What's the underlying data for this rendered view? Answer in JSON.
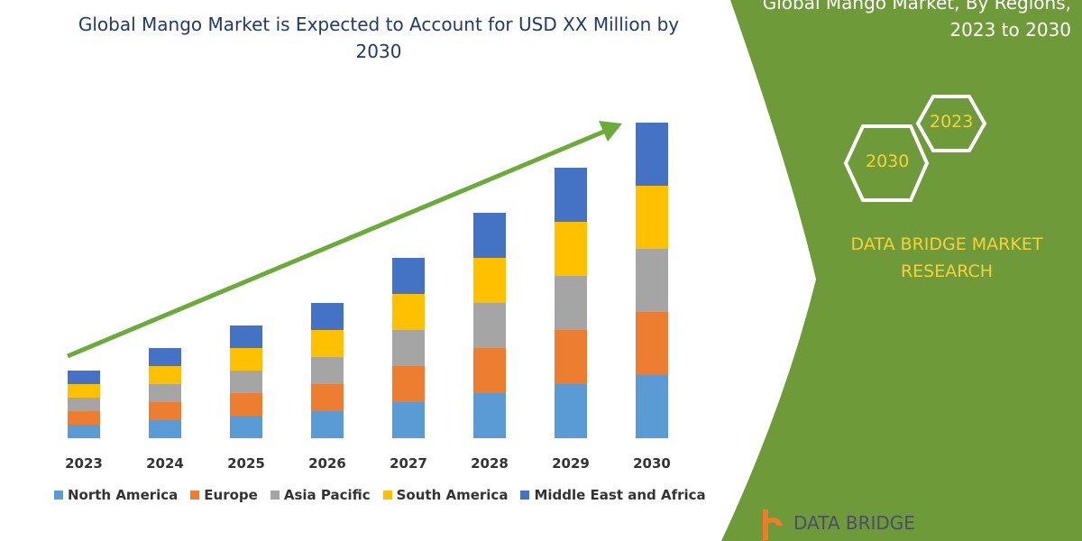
{
  "header": {
    "title": "Global Mango Market is Expected to Account for USD XX Million by 2030"
  },
  "side_panel": {
    "title_line1": "Global Mango Market, By Regions,",
    "title_line2": "2023 to 2030",
    "hex_years": [
      "2023",
      "2030"
    ],
    "brand_line1": "DATA BRIDGE MARKET",
    "brand_line2": "RESEARCH",
    "footer_logo": "DATA BRIDGE",
    "green": "#6f9a3a"
  },
  "chart_data": {
    "type": "bar",
    "stacked": true,
    "title": "Global Mango Market is Expected to Account for USD XX Million by 2030",
    "categories": [
      "2023",
      "2024",
      "2025",
      "2026",
      "2027",
      "2028",
      "2029",
      "2030"
    ],
    "series": [
      {
        "name": "North America",
        "color": "#5b9bd5",
        "values": [
          15,
          20,
          25,
          30,
          40,
          50,
          60,
          70
        ]
      },
      {
        "name": "Europe",
        "color": "#ed7d31",
        "values": [
          15,
          20,
          25,
          30,
          40,
          50,
          60,
          70
        ]
      },
      {
        "name": "Asia Pacific",
        "color": "#a5a5a5",
        "values": [
          15,
          20,
          25,
          30,
          40,
          50,
          60,
          70
        ]
      },
      {
        "name": "South America",
        "color": "#ffc000",
        "values": [
          15,
          20,
          25,
          30,
          40,
          50,
          60,
          70
        ]
      },
      {
        "name": "Middle East and Africa",
        "color": "#4472c4",
        "values": [
          15,
          20,
          25,
          30,
          40,
          50,
          60,
          70
        ]
      }
    ],
    "ylim": [
      0,
      355
    ],
    "grid": false,
    "legend": "bottom",
    "trend_arrow_color": "#6aab3a"
  }
}
